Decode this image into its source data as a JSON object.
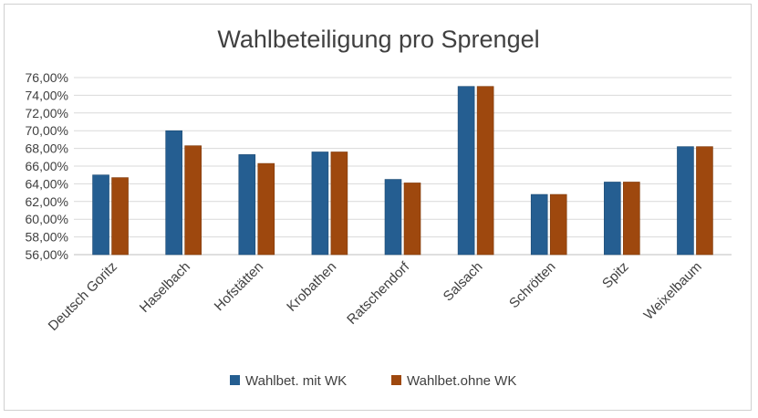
{
  "chart_data": {
    "type": "bar",
    "title": "Wahlbeteiligung pro Sprengel",
    "xlabel": "",
    "ylabel": "",
    "ylim": [
      0.56,
      0.76
    ],
    "ytick_step": 0.02,
    "ytick_labels": [
      "56,00%",
      "58,00%",
      "60,00%",
      "62,00%",
      "64,00%",
      "66,00%",
      "68,00%",
      "70,00%",
      "72,00%",
      "74,00%",
      "76,00%"
    ],
    "grid": true,
    "legend_position": "bottom",
    "categories": [
      "Deutsch Goritz",
      "Haselbach",
      "Hofstätten",
      "Krobathen",
      "Ratschendorf",
      "Salsach",
      "Schrötten",
      "Spitz",
      "Weixelbaum"
    ],
    "series": [
      {
        "name": "Wahlbet. mit WK",
        "color": "#255e91",
        "values": [
          0.65,
          0.7,
          0.673,
          0.676,
          0.645,
          0.75,
          0.628,
          0.642,
          0.682
        ]
      },
      {
        "name": "Wahlbet.ohne WK",
        "color": "#9e480e",
        "values": [
          0.647,
          0.683,
          0.663,
          0.676,
          0.641,
          0.75,
          0.628,
          0.642,
          0.682
        ]
      }
    ]
  }
}
